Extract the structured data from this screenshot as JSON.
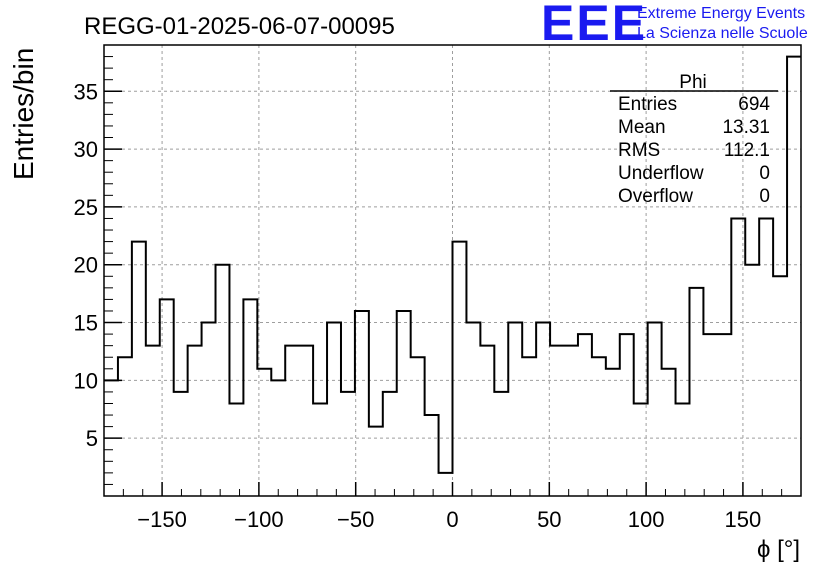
{
  "chart_data": {
    "type": "histogram",
    "title": "REGG-01-2025-06-07-00095",
    "xlabel": "ϕ [°]",
    "ylabel": "Entries/bin",
    "xlim": [
      -180,
      180
    ],
    "ylim": [
      0,
      39
    ],
    "grid": true,
    "xticks": [
      -150,
      -100,
      -50,
      0,
      50,
      100,
      150
    ],
    "yticks": [
      5,
      10,
      15,
      20,
      25,
      30,
      35
    ],
    "bin_width": 7.2,
    "bin_edges_start": -180,
    "values": [
      10,
      12,
      22,
      13,
      17,
      9,
      13,
      15,
      20,
      8,
      17,
      11,
      10,
      13,
      13,
      8,
      15,
      9,
      16,
      6,
      9,
      16,
      12,
      7,
      2,
      22,
      15,
      13,
      9,
      15,
      12,
      15,
      13,
      13,
      14,
      12,
      11,
      14,
      8,
      15,
      11,
      8,
      18,
      14,
      14,
      24,
      20,
      24,
      19,
      38
    ],
    "stats_box": {
      "name": "Phi",
      "rows": [
        {
          "label": "Entries",
          "value": "694"
        },
        {
          "label": "Mean",
          "value": "13.31"
        },
        {
          "label": "RMS",
          "value": "112.1"
        },
        {
          "label": "Underflow",
          "value": "0"
        },
        {
          "label": "Overflow",
          "value": "0"
        }
      ]
    }
  },
  "logo": {
    "letters": "EEE",
    "line1": "Extreme Energy Events",
    "line2": "La Scienza nelle Scuole",
    "color": "#1a1af0"
  }
}
